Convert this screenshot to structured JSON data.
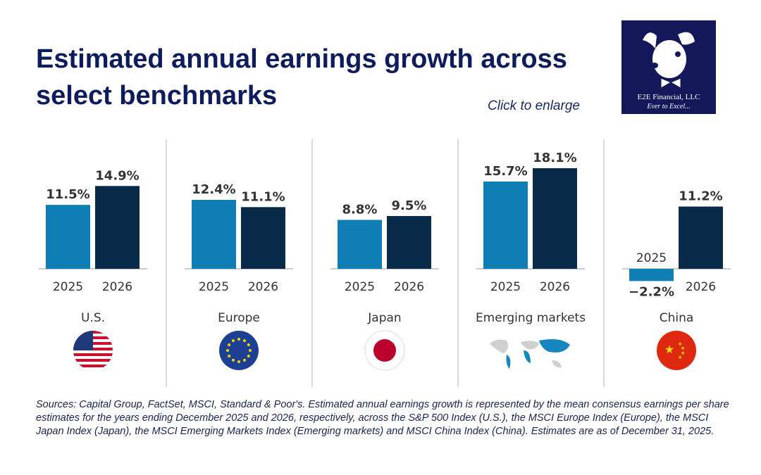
{
  "header": {
    "title": "Estimated annual earnings growth across select benchmarks",
    "click_to_enlarge": "Click to enlarge"
  },
  "logo": {
    "name": "E2E Financial, LLC",
    "tagline": "Ever to Excel..."
  },
  "colors": {
    "y2025": "#0f7eb4",
    "y2026": "#0a2a4a",
    "title": "#0f1c5c"
  },
  "chart_data": {
    "type": "bar",
    "title": "Estimated annual earnings growth across select benchmarks",
    "unit": "%",
    "series_labels": [
      "2025",
      "2026"
    ],
    "groups": [
      {
        "name": "U.S.",
        "flag": "us-flag-icon",
        "values": [
          11.5,
          14.9
        ],
        "labels": [
          "11.5%",
          "14.9%"
        ]
      },
      {
        "name": "Europe",
        "flag": "eu-flag-icon",
        "values": [
          12.4,
          11.1
        ],
        "labels": [
          "12.4%",
          "11.1%"
        ]
      },
      {
        "name": "Japan",
        "flag": "japan-flag-icon",
        "values": [
          8.8,
          9.5
        ],
        "labels": [
          "8.8%",
          "9.5%"
        ]
      },
      {
        "name": "Emerging markets",
        "flag": "world-map-icon",
        "values": [
          15.7,
          18.1
        ],
        "labels": [
          "15.7%",
          "18.1%"
        ]
      },
      {
        "name": "China",
        "flag": "china-flag-icon",
        "values": [
          -2.2,
          11.2
        ],
        "labels": [
          "−2.2%",
          "11.2%"
        ]
      }
    ]
  },
  "footnote": "Sources: Capital Group, FactSet, MSCI, Standard & Poor's. Estimated annual earnings growth is represented by the mean consensus earnings per share estimates for the years ending December 2025 and 2026, respectively, across the S&P 500 Index (U.S.), the MSCI Europe Index (Europe), the MSCI Japan Index (Japan), the MSCI Emerging Markets Index (Emerging markets) and MSCI China Index (China). Estimates are as of December 31, 2025."
}
